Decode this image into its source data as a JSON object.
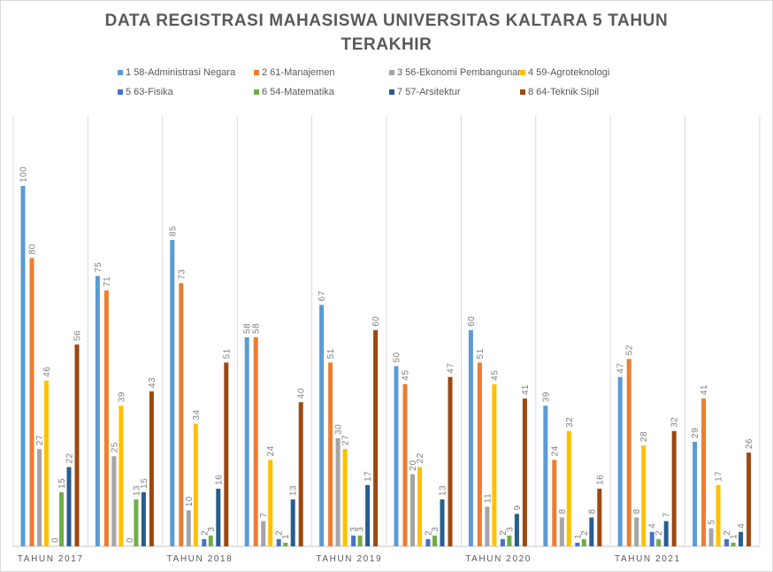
{
  "chart_data": {
    "type": "bar",
    "title_line1": "DATA REGISTRASI MAHASISWA UNIVERSITAS KALTARA 5 TAHUN",
    "title_line2": "TERAKHIR",
    "categories": [
      "TAHUN 2017",
      "",
      "TAHUN 2018",
      "",
      "TAHUN 2019",
      "",
      "TAHUN 2020",
      "",
      "TAHUN 2021",
      ""
    ],
    "ylim": [
      0,
      100
    ],
    "grid": "vertical-separators",
    "legend_position": "top",
    "series": [
      {
        "name": "1 58-Administrasi Negara",
        "color": "#5b9bd5",
        "values": [
          100,
          75,
          85,
          58,
          67,
          50,
          60,
          39,
          47,
          29
        ]
      },
      {
        "name": "2 61-Manajemen",
        "color": "#ed7d31",
        "values": [
          80,
          71,
          73,
          58,
          51,
          45,
          51,
          24,
          52,
          41
        ]
      },
      {
        "name": "3 56-Ekonomi Pembangunan",
        "color": "#a5a5a5",
        "values": [
          27,
          25,
          10,
          7,
          30,
          20,
          11,
          8,
          8,
          5
        ]
      },
      {
        "name": "4 59-Agroteknologi",
        "color": "#ffc000",
        "values": [
          46,
          39,
          34,
          24,
          27,
          22,
          45,
          32,
          28,
          17
        ]
      },
      {
        "name": "5 63-Fisika",
        "color": "#4472c4",
        "values": [
          0,
          0,
          2,
          2,
          3,
          2,
          2,
          1,
          4,
          2
        ]
      },
      {
        "name": "6 54-Matematika",
        "color": "#70ad47",
        "values": [
          15,
          13,
          3,
          1,
          3,
          3,
          3,
          2,
          2,
          1
        ]
      },
      {
        "name": "7 57-Arsitektur",
        "color": "#255e91",
        "values": [
          22,
          15,
          16,
          13,
          17,
          13,
          9,
          8,
          7,
          4
        ]
      },
      {
        "name": "8 64-Teknik Sipil",
        "color": "#9e480e",
        "values": [
          56,
          43,
          51,
          40,
          60,
          47,
          41,
          16,
          32,
          26
        ]
      }
    ]
  }
}
